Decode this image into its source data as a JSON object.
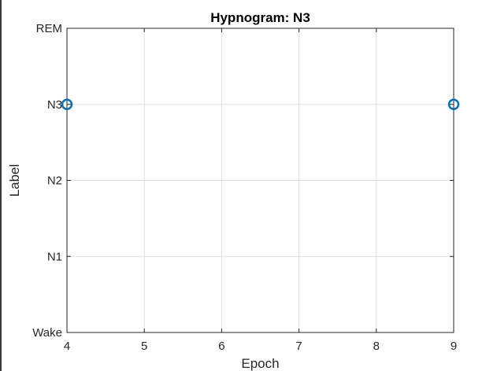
{
  "chart_data": {
    "type": "scatter",
    "title": "Hypnogram: N3",
    "xlabel": "Epoch",
    "ylabel": "Label",
    "xlim": [
      4,
      9
    ],
    "xticks": [
      "4",
      "5",
      "6",
      "7",
      "8",
      "9"
    ],
    "ylim": [
      0,
      4
    ],
    "yticks": [
      "Wake",
      "N1",
      "N2",
      "N3",
      "REM"
    ],
    "grid": true,
    "marker": "circle",
    "points": [
      {
        "x": 4,
        "y": "N3"
      },
      {
        "x": 9,
        "y": "N3"
      }
    ],
    "colors": {
      "marker": "#0072BD",
      "grid": "#dfdfdf",
      "axis": "#262626"
    }
  }
}
